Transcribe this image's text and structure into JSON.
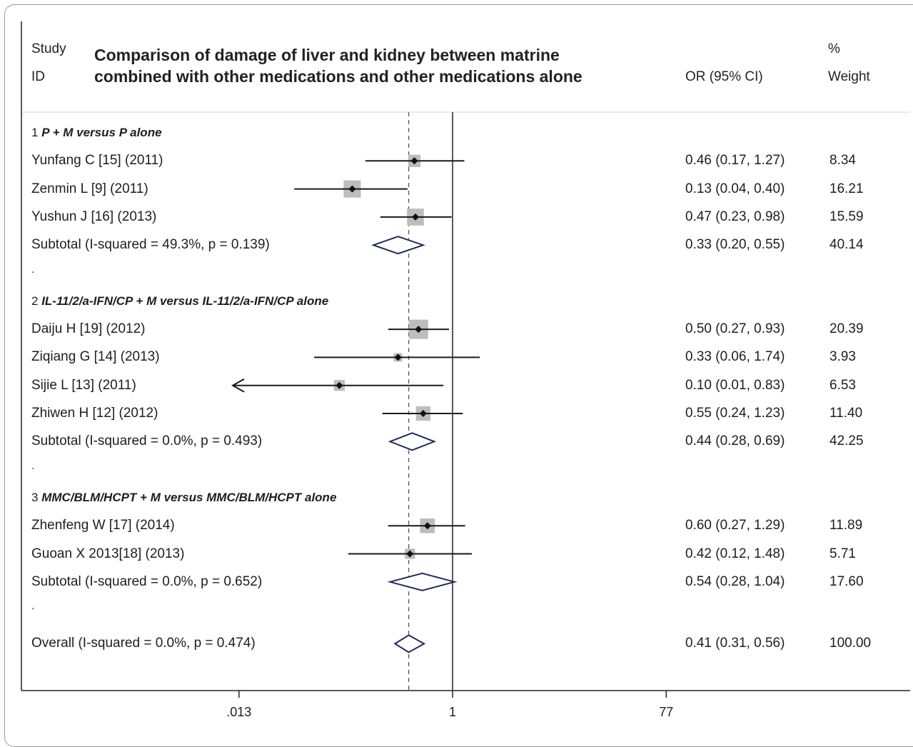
{
  "header": {
    "study_l1": "Study",
    "study_l2": "ID",
    "title_l1": "Comparison of damage of liver and kidney between matrine",
    "title_l2": "combined with other medications and other medications alone",
    "or_header": "OR (95% CI)",
    "weight_l1": "%",
    "weight_l2": "Weight"
  },
  "chart_data": {
    "type": "forest",
    "title": "Comparison of damage of liver and kidney between matrine combined with other medications and other medications alone",
    "x_scale": "log",
    "x_ticks": [
      ".013",
      "1",
      "77"
    ],
    "x_tick_values": [
      0.013,
      1,
      77
    ],
    "null_line": 1,
    "overall_line": 0.41,
    "rows": [
      {
        "kind": "group",
        "num": "1 ",
        "name": "P + M versus P alone"
      },
      {
        "kind": "study",
        "label": "Yunfang C [15] (2011)",
        "or": 0.46,
        "lo": 0.17,
        "hi": 1.27,
        "ci_text": "0.46 (0.17, 1.27)",
        "weight": "8.34",
        "w": 8.34
      },
      {
        "kind": "study",
        "label": "Zenmin L [9] (2011)",
        "or": 0.13,
        "lo": 0.04,
        "hi": 0.4,
        "ci_text": "0.13 (0.04, 0.40)",
        "weight": "16.21",
        "w": 16.21
      },
      {
        "kind": "study",
        "label": "Yushun J [16] (2013)",
        "or": 0.47,
        "lo": 0.23,
        "hi": 0.98,
        "ci_text": "0.47 (0.23, 0.98)",
        "weight": "15.59",
        "w": 15.59
      },
      {
        "kind": "subtotal",
        "label": "Subtotal  (I-squared = 49.3%, p = 0.139)",
        "or": 0.33,
        "lo": 0.2,
        "hi": 0.55,
        "ci_text": "0.33 (0.20, 0.55)",
        "weight": "40.14"
      },
      {
        "kind": "spacer",
        "text": "."
      },
      {
        "kind": "group",
        "num": "2 ",
        "name": "IL-11/2/a-IFN/CP + M versus IL-11/2/a-IFN/CP alone"
      },
      {
        "kind": "study",
        "label": "Daiju H [19] (2012)",
        "or": 0.5,
        "lo": 0.27,
        "hi": 0.93,
        "ci_text": "0.50 (0.27, 0.93)",
        "weight": "20.39",
        "w": 20.39
      },
      {
        "kind": "study",
        "label": "Ziqiang G [14] (2013)",
        "or": 0.33,
        "lo": 0.06,
        "hi": 1.74,
        "ci_text": "0.33 (0.06, 1.74)",
        "weight": "3.93",
        "w": 3.93
      },
      {
        "kind": "study",
        "label": "Sijie L [13] (2011)",
        "or": 0.1,
        "lo": 0.01,
        "hi": 0.83,
        "ci_text": "0.10 (0.01, 0.83)",
        "weight": "6.53",
        "w": 6.53,
        "arrow_left": true
      },
      {
        "kind": "study",
        "label": "Zhiwen H [12] (2012)",
        "or": 0.55,
        "lo": 0.24,
        "hi": 1.23,
        "ci_text": "0.55 (0.24, 1.23)",
        "weight": "11.40",
        "w": 11.4
      },
      {
        "kind": "subtotal",
        "label": "Subtotal  (I-squared = 0.0%, p = 0.493)",
        "or": 0.44,
        "lo": 0.28,
        "hi": 0.69,
        "ci_text": "0.44 (0.28, 0.69)",
        "weight": "42.25"
      },
      {
        "kind": "spacer",
        "text": "."
      },
      {
        "kind": "group",
        "num": "3 ",
        "name": "MMC/BLM/HCPT + M versus MMC/BLM/HCPT  alone"
      },
      {
        "kind": "study",
        "label": "Zhenfeng W [17] (2014)",
        "or": 0.6,
        "lo": 0.27,
        "hi": 1.29,
        "ci_text": "0.60 (0.27, 1.29)",
        "weight": "11.89",
        "w": 11.89
      },
      {
        "kind": "study",
        "label": "Guoan X 2013[18] (2013)",
        "or": 0.42,
        "lo": 0.12,
        "hi": 1.48,
        "ci_text": "0.42 (0.12, 1.48)",
        "weight": "5.71",
        "w": 5.71
      },
      {
        "kind": "subtotal",
        "label": "Subtotal  (I-squared = 0.0%, p = 0.652)",
        "or": 0.54,
        "lo": 0.28,
        "hi": 1.04,
        "ci_text": "0.54 (0.28, 1.04)",
        "weight": "17.60"
      },
      {
        "kind": "spacer",
        "text": "."
      },
      {
        "kind": "overall",
        "label": "Overall  (I-squared = 0.0%, p = 0.474)",
        "or": 0.41,
        "lo": 0.31,
        "hi": 0.56,
        "ci_text": "0.41 (0.31, 0.56)",
        "weight": "100.00"
      }
    ]
  }
}
